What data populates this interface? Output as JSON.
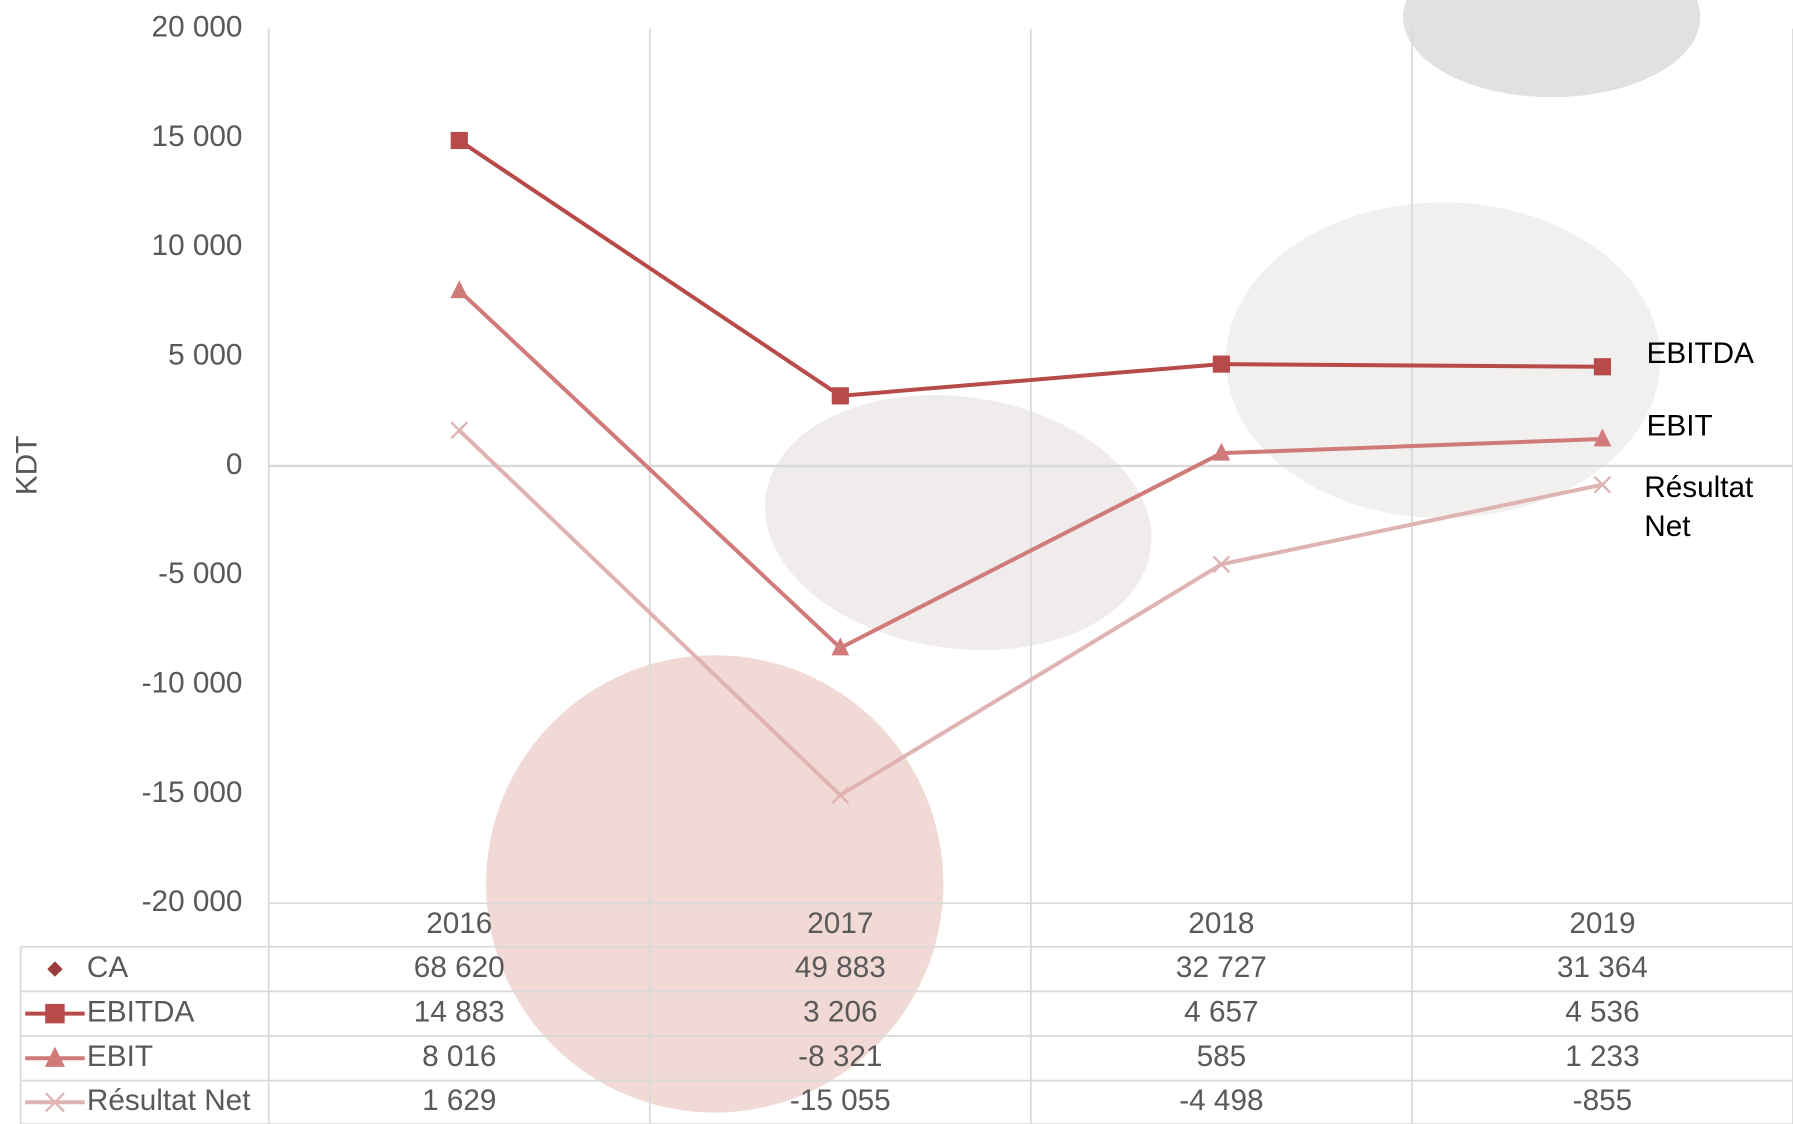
{
  "chart_data": {
    "type": "line",
    "y_label": "KDT",
    "categories": [
      "2016",
      "2017",
      "2018",
      "2019"
    ],
    "ylim": [
      -20000,
      20000
    ],
    "yticks": [
      {
        "value": -20000,
        "label": "-20 000"
      },
      {
        "value": -15000,
        "label": "-15 000"
      },
      {
        "value": -10000,
        "label": "-10 000"
      },
      {
        "value": -5000,
        "label": "-5 000"
      },
      0,
      {
        "value": 5000,
        "label": "5 000"
      },
      {
        "value": 10000,
        "label": "10 000"
      },
      {
        "value": 15000,
        "label": "15 000"
      },
      {
        "value": 20000,
        "label": "20 000"
      }
    ],
    "grid": true,
    "series": [
      {
        "name": "CA",
        "color": "#9b3a3a",
        "marker": "diamond",
        "line": false,
        "values": [
          68620,
          49883,
          32727,
          31364
        ],
        "value_labels": [
          "68 620",
          "49 883",
          "32 727",
          "31 364"
        ]
      },
      {
        "name": "EBITDA",
        "color": "#b84a4a",
        "marker": "square",
        "line": true,
        "values": [
          14883,
          3206,
          4657,
          4536
        ],
        "value_labels": [
          "14 883",
          "3 206",
          "4 657",
          "4 536"
        ]
      },
      {
        "name": "EBIT",
        "color": "#d07a7a",
        "marker": "triangle",
        "line": true,
        "values": [
          8016,
          -8321,
          585,
          1233
        ],
        "value_labels": [
          "8 016",
          "-8 321",
          "585",
          "1 233"
        ]
      },
      {
        "name": "Résultat Net",
        "color": "#e0b3b3",
        "marker": "x",
        "line": true,
        "values": [
          1629,
          -15055,
          -4498,
          -855
        ],
        "value_labels": [
          "1 629",
          "-15 055",
          "-4 498",
          "-855"
        ]
      }
    ]
  }
}
